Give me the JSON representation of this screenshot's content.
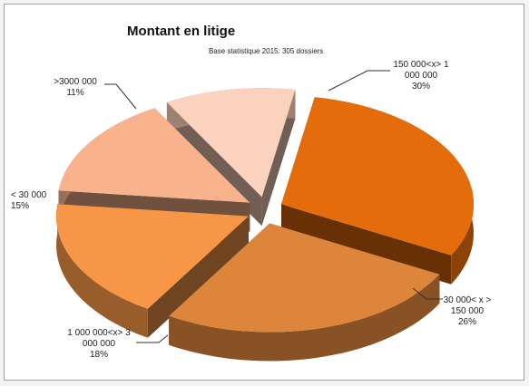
{
  "chart_data": {
    "type": "pie",
    "title": "Montant en litige",
    "subtitle": "Base statistique 2015: 305 dossiers",
    "categories": [
      "150 000<x> 1 000 000",
      "30 000< x > 150 000",
      "1 000 000<x> 3 000 000",
      "< 30 000",
      ">3000 000"
    ],
    "values": [
      30,
      26,
      18,
      15,
      11
    ],
    "value_labels": [
      "30%",
      "26%",
      "18%",
      "15%",
      "11%"
    ],
    "colors": [
      "#e46c0a",
      "#dc853b",
      "#f79646",
      "#f8b38c",
      "#fbd2bd"
    ]
  }
}
